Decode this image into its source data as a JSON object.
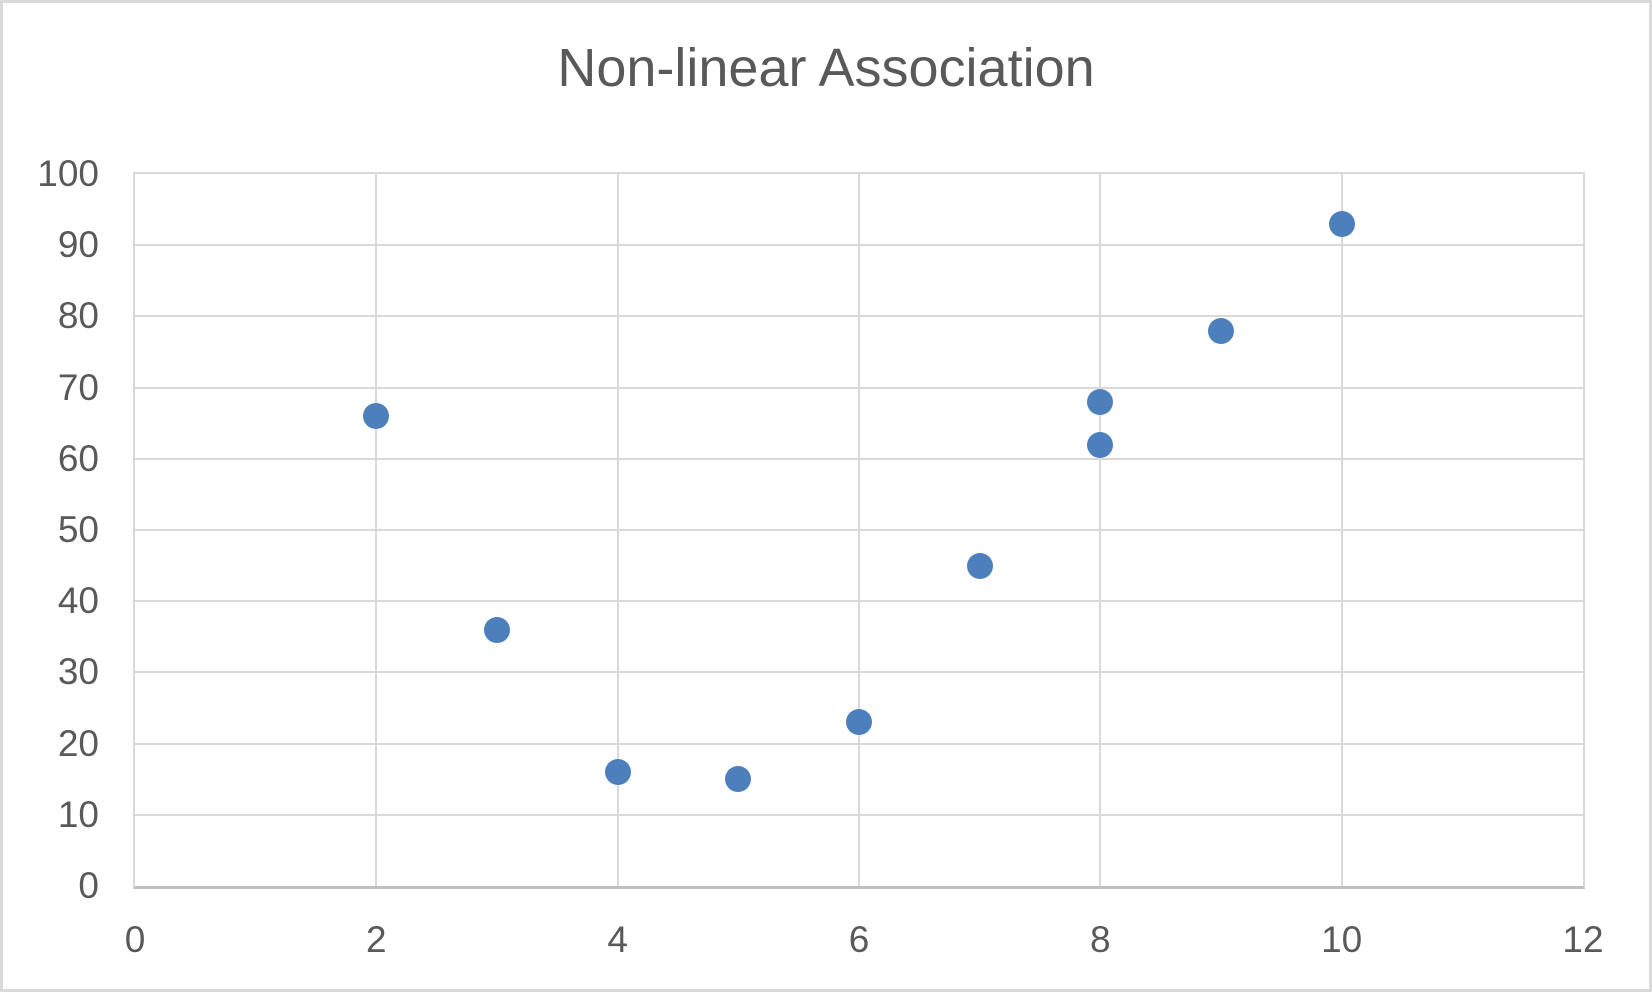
{
  "chart_data": {
    "type": "scatter",
    "title": "Non-linear Association",
    "xlabel": "",
    "ylabel": "",
    "xlim": [
      0,
      12
    ],
    "ylim": [
      0,
      100
    ],
    "x_tick_step": 2,
    "y_tick_step": 10,
    "x_tick_labels": [
      "0",
      "2",
      "4",
      "6",
      "8",
      "10",
      "12"
    ],
    "y_tick_labels": [
      "0",
      "10",
      "20",
      "30",
      "40",
      "50",
      "60",
      "70",
      "80",
      "90",
      "100"
    ],
    "grid": true,
    "legend_position": "none",
    "points": [
      {
        "x": 2,
        "y": 66
      },
      {
        "x": 3,
        "y": 36
      },
      {
        "x": 4,
        "y": 16
      },
      {
        "x": 5,
        "y": 15
      },
      {
        "x": 6,
        "y": 23
      },
      {
        "x": 7,
        "y": 45
      },
      {
        "x": 8,
        "y": 68
      },
      {
        "x": 8,
        "y": 62
      },
      {
        "x": 9,
        "y": 78
      },
      {
        "x": 10,
        "y": 93
      }
    ],
    "colors": {
      "marker": "#4E7FBD",
      "title_text": "#595959",
      "tick_text": "#595959",
      "gridline": "#D9D9D9",
      "plot_border": "#D9D9D9",
      "axis_line": "#BFBFBF",
      "background": "#FFFFFF",
      "canvas_border": "#D9D9D9"
    }
  }
}
